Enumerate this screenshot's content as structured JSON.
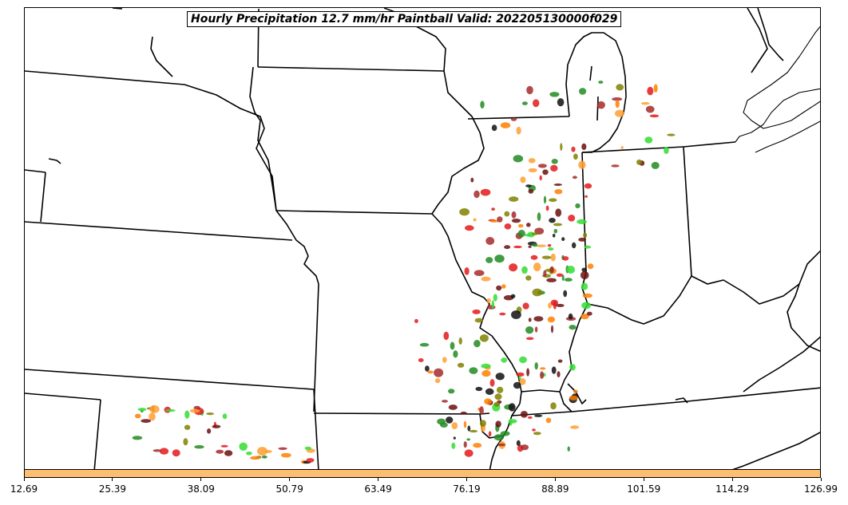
{
  "title": "Hourly Precipitation 12.7 mm/hr Paintball Valid: 202205130000f029",
  "colorbar": {
    "color": "#fdbf6f",
    "ticks": [
      "12.69",
      "25.39",
      "38.09",
      "50.79",
      "63.49",
      "76.19",
      "88.89",
      "101.59",
      "114.29",
      "126.99"
    ]
  },
  "paintball_colors": [
    "#6b0f0f",
    "#ff7f00",
    "#e31a1c",
    "#228b22",
    "#33dd33",
    "#808000",
    "#ff9f2f",
    "#a52a2a",
    "#111111"
  ]
}
